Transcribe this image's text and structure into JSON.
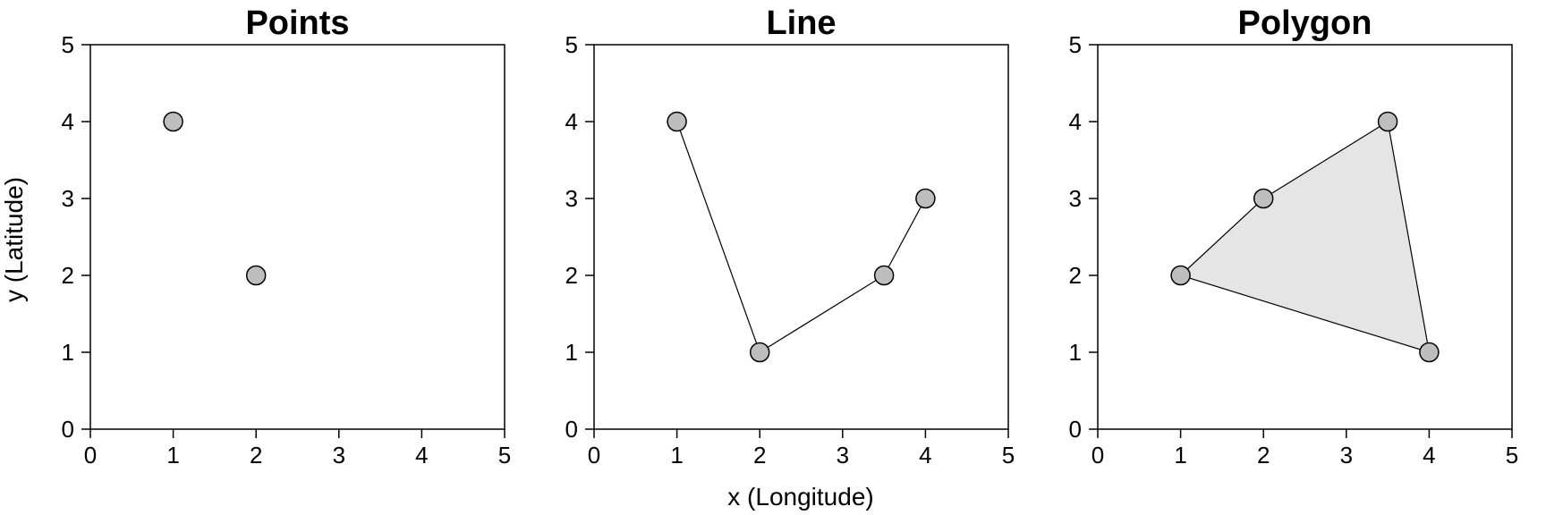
{
  "figure": {
    "xlabel": "x (Longitude)",
    "ylabel": "y (Latitude)"
  },
  "colors": {
    "point_fill": "#bebebe",
    "polygon_fill": "#e5e5e5",
    "stroke": "#000000"
  },
  "chart_data": [
    {
      "type": "scatter",
      "title": "Points",
      "xlim": [
        0,
        5
      ],
      "ylim": [
        0,
        5
      ],
      "xticks": [
        "0",
        "1",
        "2",
        "3",
        "4",
        "5"
      ],
      "yticks": [
        "0",
        "1",
        "2",
        "3",
        "4",
        "5"
      ],
      "points": [
        {
          "x": 1,
          "y": 4
        },
        {
          "x": 2,
          "y": 2
        }
      ]
    },
    {
      "type": "line",
      "title": "Line",
      "xlim": [
        0,
        5
      ],
      "ylim": [
        0,
        5
      ],
      "xticks": [
        "0",
        "1",
        "2",
        "3",
        "4",
        "5"
      ],
      "yticks": [
        "0",
        "1",
        "2",
        "3",
        "4",
        "5"
      ],
      "points": [
        {
          "x": 1,
          "y": 4
        },
        {
          "x": 2,
          "y": 1
        },
        {
          "x": 3.5,
          "y": 2
        },
        {
          "x": 4,
          "y": 3
        }
      ]
    },
    {
      "type": "polygon",
      "title": "Polygon",
      "xlim": [
        0,
        5
      ],
      "ylim": [
        0,
        5
      ],
      "xticks": [
        "0",
        "1",
        "2",
        "3",
        "4",
        "5"
      ],
      "yticks": [
        "0",
        "1",
        "2",
        "3",
        "4",
        "5"
      ],
      "points": [
        {
          "x": 1,
          "y": 2
        },
        {
          "x": 2,
          "y": 3
        },
        {
          "x": 3.5,
          "y": 4
        },
        {
          "x": 4,
          "y": 1
        }
      ]
    }
  ]
}
